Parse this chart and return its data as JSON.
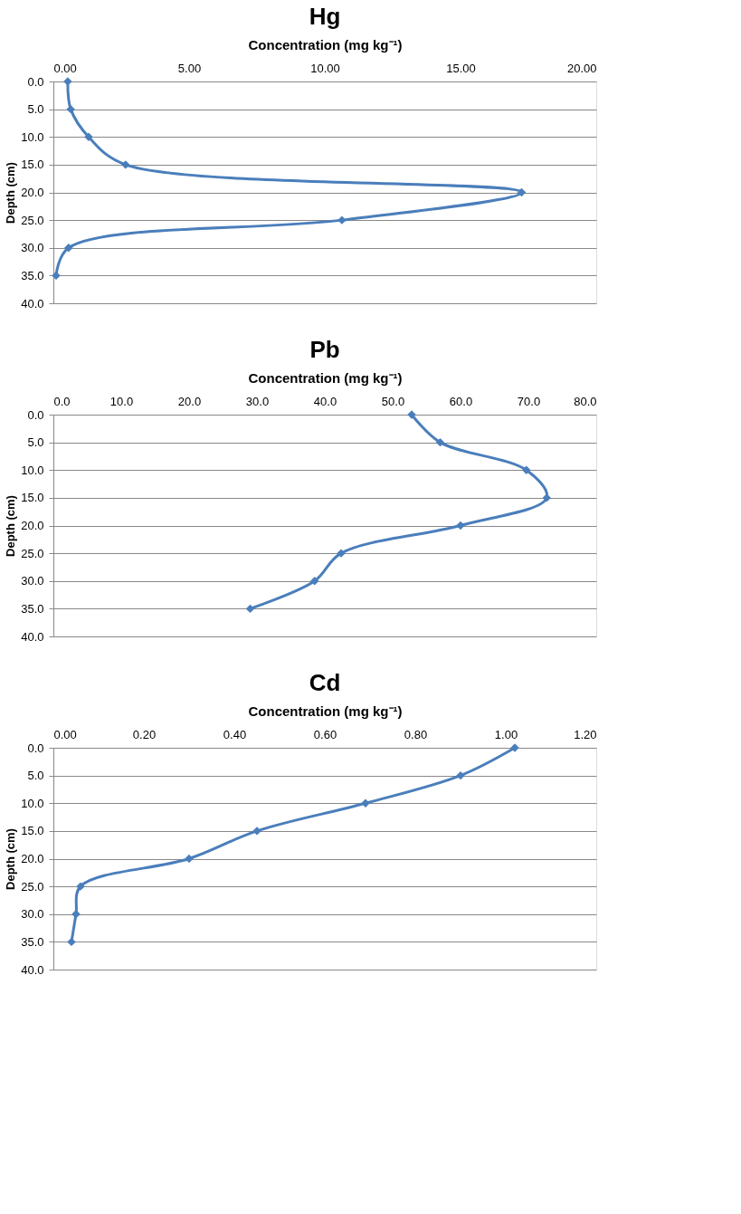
{
  "chart_data": [
    {
      "type": "line",
      "title": "Hg",
      "xlabel": "Concentration (mg kg⁻¹)",
      "ylabel": "Depth (cm)",
      "grid": "y",
      "marker": "diamond",
      "line_style": "solid",
      "xlim": [
        0,
        20
      ],
      "xticks": [
        {
          "value": 0,
          "label": "0.00"
        },
        {
          "value": 5,
          "label": "5.00"
        },
        {
          "value": 10,
          "label": "10.00"
        },
        {
          "value": 15,
          "label": "15.00"
        },
        {
          "value": 20,
          "label": "20.00"
        }
      ],
      "ylim": [
        40,
        0
      ],
      "yticks": [
        {
          "value": 0,
          "label": "0.0"
        },
        {
          "value": 5,
          "label": "5.0"
        },
        {
          "value": 10,
          "label": "10.0"
        },
        {
          "value": 15,
          "label": "15.0"
        },
        {
          "value": 20,
          "label": "20.0"
        },
        {
          "value": 25,
          "label": "25.0"
        },
        {
          "value": 30,
          "label": "30.0"
        },
        {
          "value": 35,
          "label": "35.0"
        },
        {
          "value": 40,
          "label": "40.0"
        }
      ],
      "series": [
        {
          "color": "#4a7ebb",
          "x": [
            0.53,
            0.64,
            1.3,
            2.66,
            17.25,
            10.63,
            0.56,
            0.1
          ],
          "values": [
            0,
            5,
            10,
            15,
            20,
            25,
            30,
            35
          ]
        }
      ]
    },
    {
      "type": "line",
      "title": "Pb",
      "xlabel": "Concentration (mg kg⁻¹)",
      "ylabel": "Depth (cm)",
      "grid": "y",
      "marker": "diamond",
      "line_style": "solid",
      "xlim": [
        0,
        80
      ],
      "xticks": [
        {
          "value": 0,
          "label": "0.0"
        },
        {
          "value": 10,
          "label": "10.0"
        },
        {
          "value": 20,
          "label": "20.0"
        },
        {
          "value": 30,
          "label": "30.0"
        },
        {
          "value": 40,
          "label": "40.0"
        },
        {
          "value": 50,
          "label": "50.0"
        },
        {
          "value": 60,
          "label": "60.0"
        },
        {
          "value": 70,
          "label": "70.0"
        },
        {
          "value": 80,
          "label": "80.0"
        }
      ],
      "ylim": [
        40,
        0
      ],
      "yticks": [
        {
          "value": 0,
          "label": "0.0"
        },
        {
          "value": 5,
          "label": "5.0"
        },
        {
          "value": 10,
          "label": "10.0"
        },
        {
          "value": 15,
          "label": "15.0"
        },
        {
          "value": 20,
          "label": "20.0"
        },
        {
          "value": 25,
          "label": "25.0"
        },
        {
          "value": 30,
          "label": "30.0"
        },
        {
          "value": 35,
          "label": "35.0"
        },
        {
          "value": 40,
          "label": "40.0"
        }
      ],
      "series": [
        {
          "color": "#4a7ebb",
          "x": [
            52.8,
            57.0,
            69.7,
            72.7,
            60.0,
            42.4,
            38.5,
            29.0
          ],
          "values": [
            0,
            5,
            10,
            15,
            20,
            25,
            30,
            35
          ]
        }
      ]
    },
    {
      "type": "line",
      "title": "Cd",
      "xlabel": "Concentration (mg kg⁻¹)",
      "ylabel": "Depth (cm)",
      "grid": "y",
      "marker": "diamond",
      "line_style": "solid",
      "xlim": [
        0,
        1.2
      ],
      "xticks": [
        {
          "value": 0,
          "label": "0.00"
        },
        {
          "value": 0.2,
          "label": "0.20"
        },
        {
          "value": 0.4,
          "label": "0.40"
        },
        {
          "value": 0.6,
          "label": "0.60"
        },
        {
          "value": 0.8,
          "label": "0.80"
        },
        {
          "value": 1.0,
          "label": "1.00"
        },
        {
          "value": 1.2,
          "label": "1.20"
        }
      ],
      "ylim": [
        40,
        0
      ],
      "yticks": [
        {
          "value": 0,
          "label": "0.0"
        },
        {
          "value": 5,
          "label": "5.0"
        },
        {
          "value": 10,
          "label": "10.0"
        },
        {
          "value": 15,
          "label": "15.0"
        },
        {
          "value": 20,
          "label": "20.0"
        },
        {
          "value": 25,
          "label": "25.0"
        },
        {
          "value": 30,
          "label": "30.0"
        },
        {
          "value": 35,
          "label": "35.0"
        },
        {
          "value": 40,
          "label": "40.0"
        }
      ],
      "series": [
        {
          "color": "#4a7ebb",
          "x": [
            1.02,
            0.9,
            0.69,
            0.45,
            0.3,
            0.06,
            0.05,
            0.04
          ],
          "values": [
            0,
            5,
            10,
            15,
            20,
            25,
            30,
            35
          ]
        }
      ]
    }
  ]
}
